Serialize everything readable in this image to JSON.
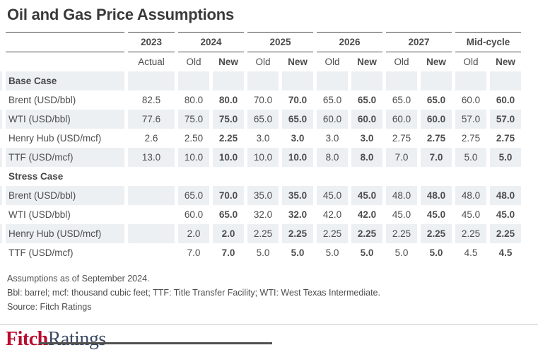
{
  "title": "Oil and Gas Price Assumptions",
  "table": {
    "column_groups": [
      {
        "year": "2023",
        "subs": [
          "Actual"
        ]
      },
      {
        "year": "2024",
        "subs": [
          "Old",
          "New"
        ]
      },
      {
        "year": "2025",
        "subs": [
          "Old",
          "New"
        ]
      },
      {
        "year": "2026",
        "subs": [
          "Old",
          "New"
        ]
      },
      {
        "year": "2027",
        "subs": [
          "Old",
          "New"
        ]
      },
      {
        "year": "Mid-cycle",
        "subs": [
          "Old",
          "New"
        ]
      }
    ],
    "sections": [
      {
        "name": "Base Case",
        "rows": [
          {
            "label": "Brent (USD/bbl)",
            "values": [
              "82.5",
              "80.0",
              "80.0",
              "70.0",
              "70.0",
              "65.0",
              "65.0",
              "65.0",
              "65.0",
              "60.0",
              "60.0"
            ]
          },
          {
            "label": "WTI (USD/bbl)",
            "values": [
              "77.6",
              "75.0",
              "75.0",
              "65.0",
              "65.0",
              "60.0",
              "60.0",
              "60.0",
              "60.0",
              "57.0",
              "57.0"
            ]
          },
          {
            "label": "Henry Hub (USD/mcf)",
            "values": [
              "2.6",
              "2.50",
              "2.25",
              "3.0",
              "3.0",
              "3.0",
              "3.0",
              "2.75",
              "2.75",
              "2.75",
              "2.75"
            ]
          },
          {
            "label": "TTF (USD/mcf)",
            "values": [
              "13.0",
              "10.0",
              "10.0",
              "10.0",
              "10.0",
              "8.0",
              "8.0",
              "7.0",
              "7.0",
              "5.0",
              "5.0"
            ]
          }
        ]
      },
      {
        "name": "Stress Case",
        "rows": [
          {
            "label": "Brent (USD/bbl)",
            "values": [
              "",
              "65.0",
              "70.0",
              "35.0",
              "35.0",
              "45.0",
              "45.0",
              "48.0",
              "48.0",
              "48.0",
              "48.0"
            ]
          },
          {
            "label": "WTI (USD/bbl)",
            "values": [
              "",
              "60.0",
              "65.0",
              "32.0",
              "32.0",
              "42.0",
              "42.0",
              "45.0",
              "45.0",
              "45.0",
              "45.0"
            ]
          },
          {
            "label": "Henry Hub (USD/mcf)",
            "values": [
              "",
              "2.0",
              "2.0",
              "2.25",
              "2.25",
              "2.25",
              "2.25",
              "2.25",
              "2.25",
              "2.25",
              "2.25"
            ]
          },
          {
            "label": "TTF (USD/mcf)",
            "values": [
              "",
              "7.0",
              "7.0",
              "5.0",
              "5.0",
              "5.0",
              "5.0",
              "5.0",
              "5.0",
              "4.5",
              "4.5"
            ]
          }
        ]
      }
    ]
  },
  "footnotes": [
    "Assumptions as of September 2024.",
    "Bbl: barrel; mcf: thousand cubic feet; TTF: Title Transfer Facility; WTI: West Texas Intermediate.",
    "Source: Fitch Ratings"
  ],
  "logo": {
    "fitch": "Fitch",
    "ratings": "Ratings"
  },
  "colors": {
    "accent_red": "#ba0c2f",
    "logo_navy": "#3d4b61",
    "stripe": "#ecf0f3",
    "rule_dark": "#4a4a4a",
    "rule_light": "#c9c9c9",
    "text": "#4d4d4d"
  }
}
